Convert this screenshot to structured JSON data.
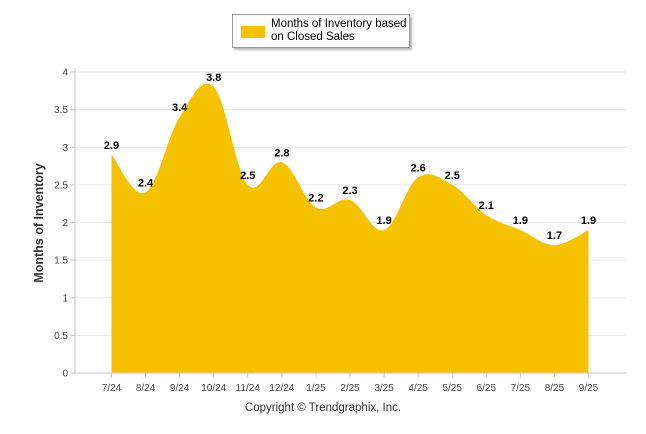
{
  "chart_data": {
    "type": "area",
    "categories": [
      "7/24",
      "8/24",
      "9/24",
      "10/24",
      "11/24",
      "12/24",
      "1/25",
      "2/25",
      "3/25",
      "4/25",
      "5/25",
      "6/25",
      "7/25",
      "8/25",
      "9/25"
    ],
    "series": [
      {
        "name": "Months of Inventory based on Closed Sales",
        "values": [
          2.9,
          2.4,
          3.4,
          3.8,
          2.5,
          2.8,
          2.2,
          2.3,
          1.9,
          2.6,
          2.5,
          2.1,
          1.9,
          1.7,
          1.9
        ],
        "labels": [
          "2.9",
          "2.4",
          "3.4",
          "3.8",
          "2.5",
          "2.8",
          "2.2",
          "2.3",
          "1.9",
          "2.6",
          "2.5",
          "2.1",
          "1.9",
          "1.7",
          "1.9"
        ],
        "color": "#f6c200"
      }
    ],
    "ylabel": "Months of Inventory",
    "xlabel": "",
    "ylim": [
      0,
      4
    ],
    "yticks": [
      0,
      0.5,
      1,
      1.5,
      2,
      2.5,
      3,
      3.5,
      4
    ],
    "ytick_labels": [
      "0",
      "0.5",
      "1",
      "1.5",
      "2",
      "2.5",
      "3",
      "3.5",
      "4"
    ],
    "grid": true,
    "legend_position": "top-center"
  },
  "legend": {
    "label_line1": "Months of Inventory based",
    "label_line2": "on Closed Sales"
  },
  "footer": {
    "copyright": "Copyright © Trendgraphix, Inc."
  },
  "colors": {
    "series": "#f6c200",
    "grid": "#e6e6e6",
    "axis": "#c8c8c8"
  }
}
